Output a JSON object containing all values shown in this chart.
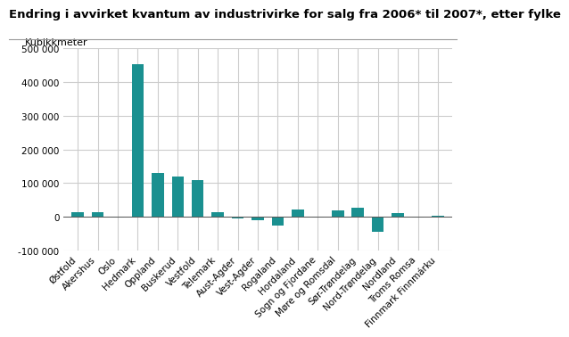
{
  "title": "Endring i avvirket kvantum av industrivirke for salg fra 2006* til 2007*, etter fylke",
  "ylabel": "Kubikkmeter",
  "categories": [
    "Østfold",
    "Akershus",
    "Oslo",
    "Hedmark",
    "Oppland",
    "Buskerud",
    "Vestfold",
    "Telemark",
    "Aust-Agder",
    "Vest-Agder",
    "Rogaland",
    "Hordaland",
    "Sogn og Fjordane",
    "Møre og Romsdal",
    "Sør-Trøndelag",
    "Nord-Trøndelag",
    "Nordland",
    "Troms Romsa",
    "Finnmark Finnmárku"
  ],
  "values": [
    13000,
    14000,
    -2000,
    452000,
    130000,
    120000,
    110000,
    15000,
    -5000,
    -10000,
    -25000,
    22000,
    -3000,
    18000,
    27000,
    -45000,
    12000,
    -3000,
    3000
  ],
  "bar_color": "#1a9090",
  "ylim": [
    -100000,
    500000
  ],
  "yticks": [
    -100000,
    0,
    100000,
    200000,
    300000,
    400000,
    500000
  ],
  "bg_color": "#ffffff",
  "grid_color": "#cccccc",
  "title_fontsize": 9.5,
  "label_fontsize": 8,
  "tick_fontsize": 7.5
}
